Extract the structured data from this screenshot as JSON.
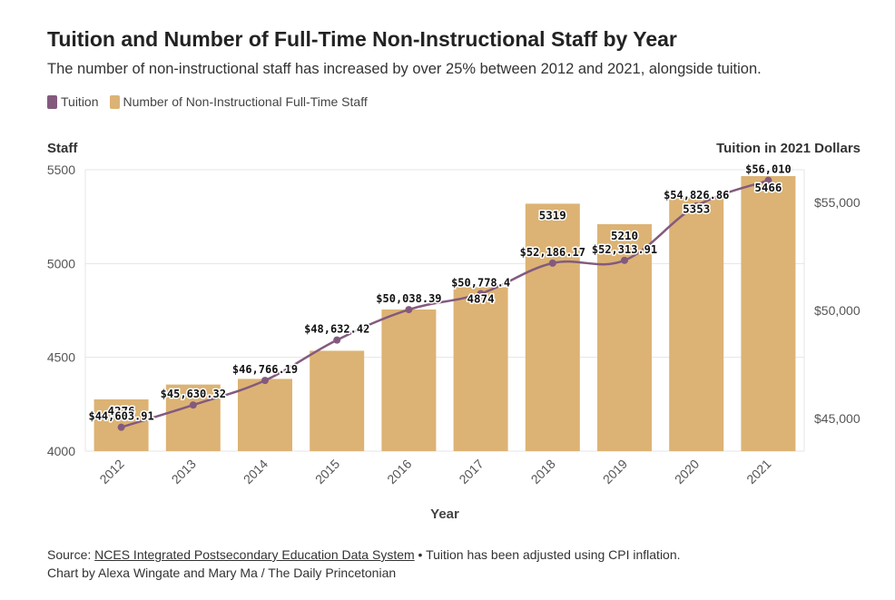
{
  "header": {
    "title": "Tuition and Number of Full-Time Non-Instructional Staff by Year",
    "subtitle": "The number of non-instructional staff has increased by over 25% between 2012 and 2021, alongside tuition."
  },
  "legend": {
    "tuition_label": "Tuition",
    "staff_label": "Number of Non-Instructional Full-Time Staff"
  },
  "colors": {
    "bar": "#dcb374",
    "line": "#835a7e",
    "grid": "#e6e6e6"
  },
  "chart_data": {
    "type": "bar",
    "title": "Tuition and Number of Full-Time Non-Instructional Staff by Year",
    "xlabel": "Year",
    "ylabel": "Staff",
    "y2label": "Tuition in 2021 Dollars",
    "categories": [
      "2012",
      "2013",
      "2014",
      "2015",
      "2016",
      "2017",
      "2018",
      "2019",
      "2020",
      "2021"
    ],
    "ylim": [
      4000,
      5500
    ],
    "y_ticks": [
      4000,
      4500,
      5000,
      5500
    ],
    "y2lim": [
      43500,
      56500
    ],
    "y2_ticks": [
      45000,
      50000,
      55000
    ],
    "y2_tick_labels": [
      "$45,000",
      "$50,000",
      "$55,000"
    ],
    "series": [
      {
        "name": "Number of Non-Instructional Full-Time Staff",
        "type": "bar",
        "axis": "left",
        "values": [
          4276,
          4355,
          4385,
          4535,
          4755,
          4874,
          5319,
          5210,
          5353,
          5466
        ],
        "data_labels": [
          "4276",
          "",
          "",
          "",
          "",
          "4874",
          "5319",
          "5210",
          "5353",
          "5466"
        ]
      },
      {
        "name": "Tuition",
        "type": "line",
        "axis": "right",
        "values": [
          44603.91,
          45630.32,
          46766.19,
          48632.42,
          50038.39,
          50778.4,
          52186.17,
          52313.91,
          54826.86,
          56010
        ],
        "data_labels": [
          "$44,603.91",
          "$45,630.32",
          "$46,766.19",
          "$48,632.42",
          "$50,038.39",
          "$50,778.4",
          "$52,186.17",
          "$52,313.91",
          "$54,826.86",
          "$56,010"
        ]
      }
    ]
  },
  "footer": {
    "source_prefix": "Source: ",
    "source_link": "NCES Integrated Postsecondary Education Data System",
    "source_suffix": " • Tuition has been adjusted using CPI inflation.",
    "credit": "Chart by Alexa Wingate and Mary Ma / The Daily Princetonian"
  }
}
